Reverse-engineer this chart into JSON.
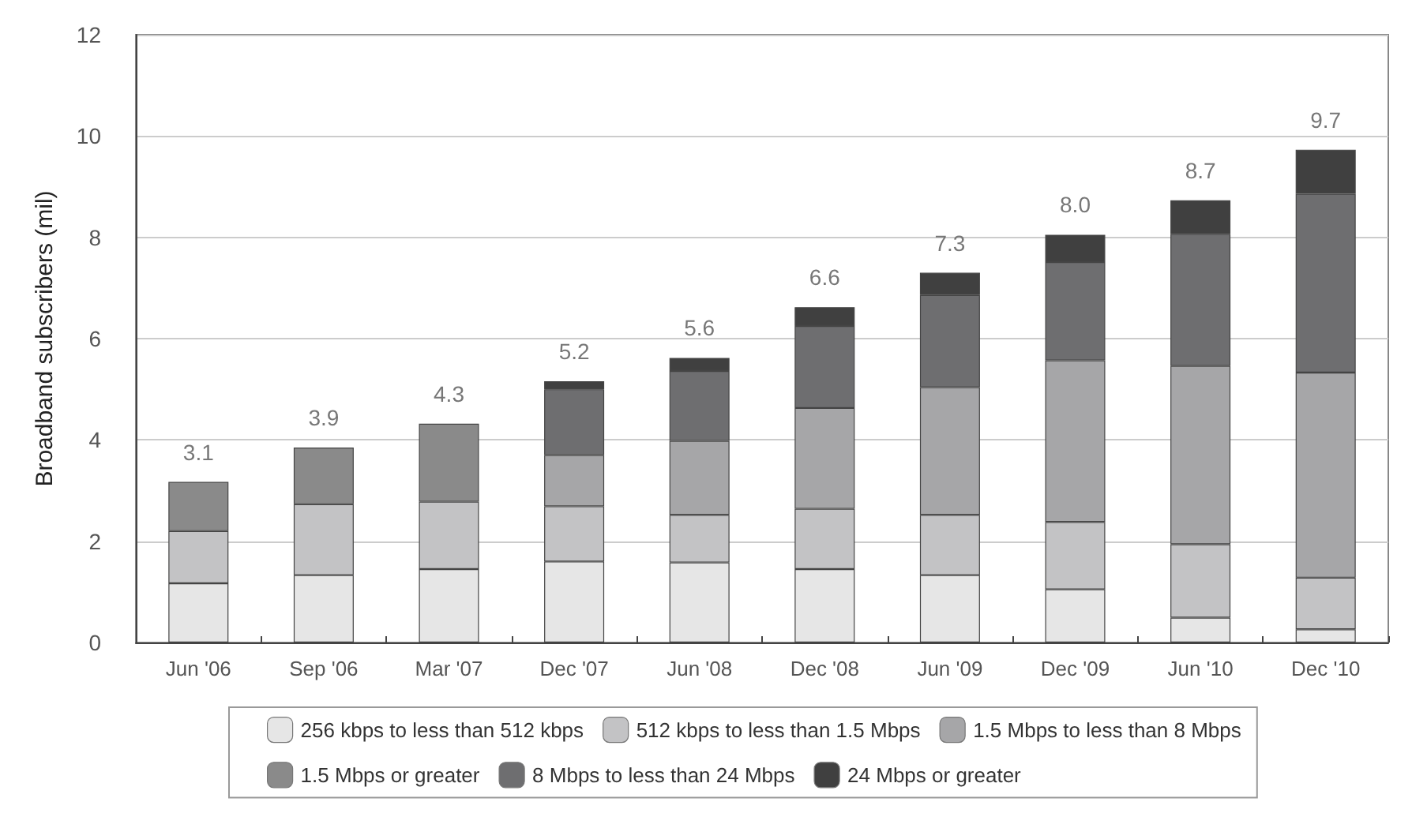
{
  "chart_data": {
    "type": "bar",
    "stacked": true,
    "ylabel": "Broadband subscribers (mil)",
    "categories": [
      "Jun '06",
      "Sep '06",
      "Mar '07",
      "Dec '07",
      "Jun '08",
      "Dec '08",
      "Jun '09",
      "Dec '09",
      "Jun '10",
      "Dec '10"
    ],
    "series": [
      {
        "name": "256 kbps to less than 512 kbps",
        "color": "#e6e6e6",
        "values": [
          1.17,
          1.33,
          1.45,
          1.6,
          1.58,
          1.45,
          1.33,
          1.05,
          0.49,
          0.26
        ]
      },
      {
        "name": "512 kbps to less than 1.5 Mbps",
        "color": "#c3c3c5",
        "values": [
          1.03,
          1.4,
          1.33,
          1.09,
          0.94,
          1.19,
          1.19,
          1.33,
          1.45,
          1.02
        ]
      },
      {
        "name": "1.5 Mbps to less than 8 Mbps",
        "color": "#a6a6a8",
        "values": [
          null,
          null,
          null,
          1.01,
          1.46,
          1.99,
          2.52,
          3.19,
          3.52,
          4.05
        ]
      },
      {
        "name": "1.5 Mbps or greater",
        "color": "#8a8a8a",
        "values": [
          0.97,
          1.12,
          1.54,
          null,
          null,
          null,
          null,
          null,
          null,
          null
        ]
      },
      {
        "name": "8 Mbps to less than 24 Mbps",
        "color": "#6e6e70",
        "values": [
          null,
          null,
          null,
          1.3,
          1.38,
          1.62,
          1.82,
          1.94,
          2.61,
          3.53
        ]
      },
      {
        "name": "24 Mbps or greater",
        "color": "#404040",
        "values": [
          null,
          null,
          null,
          0.16,
          0.26,
          0.37,
          0.44,
          0.54,
          0.66,
          0.87
        ]
      }
    ],
    "totals": [
      "3.1",
      "3.9",
      "4.3",
      "5.2",
      "5.6",
      "6.6",
      "7.3",
      "8.0",
      "8.7",
      "9.7"
    ],
    "ylim": [
      0,
      12
    ],
    "yticks": [
      0,
      2,
      4,
      6,
      8,
      10,
      12
    ],
    "grid": "y",
    "legend": "bottom"
  }
}
